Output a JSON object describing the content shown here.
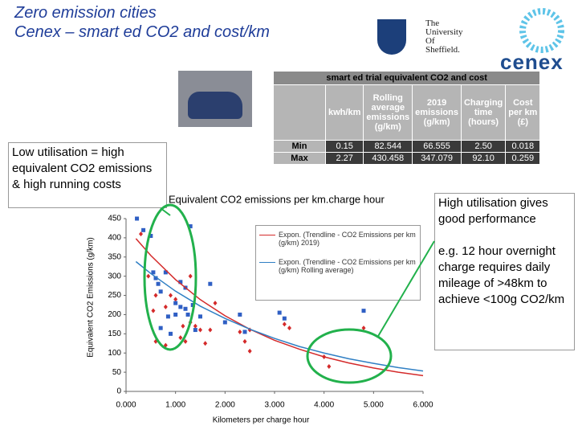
{
  "header": {
    "title": "Zero emission cities",
    "subtitle": "Cenex – smart ed CO2 and cost/km"
  },
  "logos": {
    "university": "The\nUniversity\nOf\nSheffield.",
    "company": "cenex"
  },
  "table": {
    "title": "smart ed trial equivalent CO2 and cost",
    "columns": [
      "kwh/km",
      "Rolling\naverage\nemissions\n(g/km)",
      "2019\nemissions\n(g/km)",
      "Charging\ntime\n(hours)",
      "Cost\nper km\n(£)"
    ],
    "rows": [
      [
        "Min",
        "0.15",
        "82.544",
        "66.555",
        "2.50",
        "0.018"
      ],
      [
        "Max",
        "2.27",
        "430.458",
        "347.079",
        "92.10",
        "0.259"
      ]
    ]
  },
  "notes": {
    "left": "Low utilisation = high equivalent CO2 emissions & high running costs",
    "right_1": "High utilisation gives good performance",
    "right_2": "e.g. 12 hour overnight charge requires daily mileage of >48km to achieve <100g CO2/km"
  },
  "chart_data": {
    "type": "scatter",
    "title": "Equivalent CO2 emissions per km.charge hour",
    "x_label": "Kilometers per charge hour",
    "y_label": "Equivalent CO2 Emissions (g/km)",
    "xlim": [
      0,
      6
    ],
    "ylim": [
      0,
      450
    ],
    "xticks": [
      {
        "value": 0,
        "label": "0.000"
      },
      {
        "value": 1,
        "label": "1.000"
      },
      {
        "value": 2,
        "label": "2.000"
      },
      {
        "value": 3,
        "label": "3.000"
      },
      {
        "value": 4,
        "label": "4.000"
      },
      {
        "value": 5,
        "label": "5.000"
      },
      {
        "value": 6,
        "label": "6.000"
      }
    ],
    "yticks": [
      0,
      50,
      100,
      150,
      200,
      250,
      300,
      350,
      400,
      450
    ],
    "series": [
      {
        "color": "#d42a2a",
        "style": "markers",
        "marker": "diamond",
        "x": [
          0.3,
          0.45,
          0.6,
          0.8,
          0.9,
          1.0,
          1.3,
          1.3,
          1.15,
          1.4,
          1.5,
          1.1,
          0.8,
          0.6,
          1.7,
          1.8,
          2.3,
          2.4,
          2.5,
          3.2,
          3.3,
          4.0,
          4.1,
          4.8,
          0.55,
          1.2,
          1.6,
          2.5
        ],
        "values": [
          410,
          300,
          250,
          220,
          250,
          240,
          300,
          180,
          170,
          170,
          160,
          140,
          120,
          130,
          160,
          230,
          155,
          130,
          160,
          175,
          165,
          90,
          65,
          165,
          210,
          130,
          125,
          105
        ]
      },
      {
        "color": "#2f5fc4",
        "style": "markers",
        "marker": "square",
        "x": [
          0.22,
          0.35,
          0.5,
          0.55,
          0.6,
          0.65,
          0.8,
          0.7,
          1.1,
          1.3,
          1.2,
          1.0,
          1.1,
          1.2,
          1.35,
          1.25,
          1.0,
          0.85,
          0.7,
          1.5,
          1.7,
          2.3,
          3.1,
          3.2,
          4.8,
          0.9,
          1.4,
          2.4,
          2.0
        ],
        "values": [
          450,
          420,
          405,
          310,
          295,
          280,
          310,
          260,
          285,
          430,
          270,
          230,
          220,
          215,
          225,
          200,
          200,
          195,
          165,
          195,
          280,
          200,
          205,
          190,
          210,
          150,
          160,
          155,
          180
        ]
      },
      {
        "name": "Expon. (Trendline - CO2 Emissions per km (g/km) 2019)",
        "color": "#d42a2a",
        "style": "line",
        "x": [
          0.2,
          0.5,
          1,
          1.5,
          2,
          2.5,
          3,
          3.5,
          4,
          4.5,
          5,
          5.5,
          6
        ],
        "values": [
          398,
          354,
          291,
          239,
          197,
          162,
          133,
          110,
          90,
          74,
          61,
          50,
          41
        ]
      },
      {
        "name": "Expon. (Trendline - CO2 Emissions per km (g/km) Rolling average)",
        "color": "#2f7fc4",
        "style": "line",
        "x": [
          0.2,
          0.5,
          1,
          1.5,
          2,
          2.5,
          3,
          3.5,
          4,
          4.5,
          5,
          5.5,
          6
        ],
        "values": [
          338,
          307,
          261,
          222,
          190,
          162,
          138,
          117,
          100,
          85,
          73,
          62,
          53
        ]
      }
    ]
  }
}
